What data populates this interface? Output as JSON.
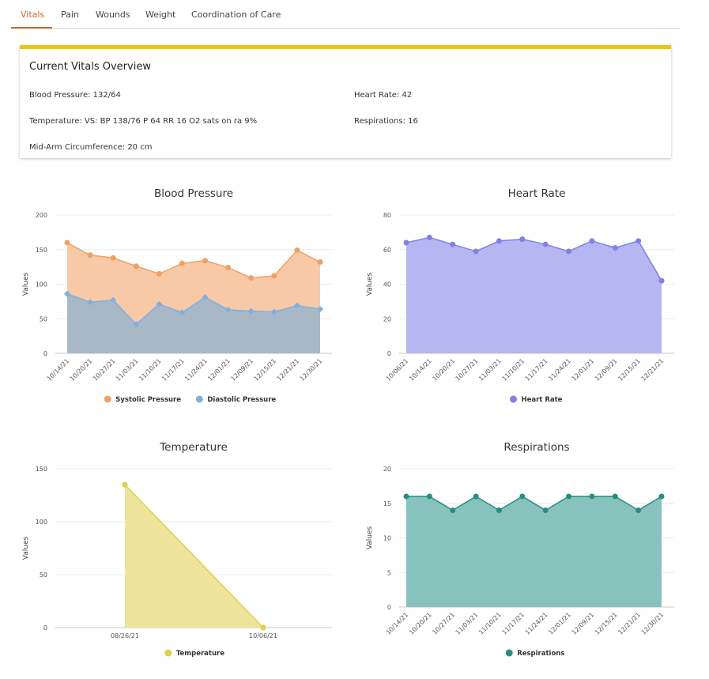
{
  "tabs": [
    "Vitals",
    "Pain",
    "Wounds",
    "Weight",
    "Coordination of Care"
  ],
  "overview": {
    "title": "Current Vitals Overview",
    "blood_pressure": "Blood Pressure: 132/64",
    "heart_rate": "Heart Rate: 42",
    "temperature": "Temperature: VS: BP 138/76 P 64 RR 16 O2 sats on ra 9%",
    "respirations": "Respirations: 16",
    "mid_arm": "Mid-Arm Circumference: 20 cm"
  },
  "colors": {
    "accent": "#d2692a",
    "card_border": "#f0c30f",
    "systolic": "#f0a064",
    "diastolic": "#7eb0e0",
    "heart_rate": "#8080e6",
    "temperature": "#e0cf48",
    "respirations": "#258e84"
  },
  "chart_data": [
    {
      "type": "area",
      "title": "Blood Pressure",
      "ylabel": "Values",
      "ylim": [
        0,
        200
      ],
      "yticks": [
        0,
        50,
        100,
        150,
        200
      ],
      "categories": [
        "10/14/21",
        "10/20/21",
        "10/27/21",
        "11/03/21",
        "11/10/21",
        "11/17/21",
        "11/24/21",
        "12/01/21",
        "12/09/21",
        "12/15/21",
        "12/21/21",
        "12/30/21"
      ],
      "series": [
        {
          "name": "Systolic Pressure",
          "color": "#f0a064",
          "fill": "#f8c9a6",
          "marker": "circle",
          "values": [
            160,
            142,
            138,
            126,
            115,
            130,
            134,
            124,
            109,
            112,
            149,
            132
          ]
        },
        {
          "name": "Diastolic Pressure",
          "color": "#7eb0e0",
          "fill": "#a8b8c6",
          "marker": "diamond",
          "values": [
            86,
            74,
            77,
            42,
            71,
            59,
            81,
            63,
            61,
            60,
            69,
            64
          ]
        }
      ]
    },
    {
      "type": "area",
      "title": "Heart Rate",
      "ylabel": "Values",
      "ylim": [
        0,
        80
      ],
      "yticks": [
        0,
        20,
        40,
        60,
        80
      ],
      "categories": [
        "10/06/21",
        "10/14/21",
        "10/20/21",
        "10/27/21",
        "11/03/21",
        "11/10/21",
        "11/17/21",
        "11/24/21",
        "12/01/21",
        "12/09/21",
        "12/15/21",
        "12/21/21"
      ],
      "series": [
        {
          "name": "Heart Rate",
          "color": "#8080e6",
          "fill": "#b6b6f3",
          "marker": "circle",
          "values": [
            64,
            67,
            63,
            59,
            65,
            66,
            63,
            59,
            65,
            61,
            65,
            42
          ]
        }
      ]
    },
    {
      "type": "area",
      "title": "Temperature",
      "ylabel": "Values",
      "ylim": [
        0,
        150
      ],
      "yticks": [
        0,
        50,
        100,
        150
      ],
      "categories": [
        "08/26/21",
        "10/06/21"
      ],
      "rotate_labels": false,
      "series": [
        {
          "name": "Temperature",
          "color": "#e0cf48",
          "fill": "#efe49b",
          "marker": "circle",
          "values": [
            135,
            0
          ]
        }
      ]
    },
    {
      "type": "area",
      "title": "Respirations",
      "ylabel": "Values",
      "ylim": [
        0,
        20
      ],
      "yticks": [
        0,
        5,
        10,
        15,
        20
      ],
      "categories": [
        "10/14/21",
        "10/20/21",
        "10/27/21",
        "11/03/21",
        "11/10/21",
        "11/17/21",
        "11/24/21",
        "12/01/21",
        "12/09/21",
        "12/15/21",
        "12/21/21",
        "12/30/21"
      ],
      "series": [
        {
          "name": "Respirations",
          "color": "#258e84",
          "fill": "#88c2bd",
          "marker": "circle",
          "values": [
            16,
            16,
            14,
            16,
            14,
            16,
            14,
            16,
            16,
            16,
            14,
            16
          ]
        }
      ]
    }
  ]
}
